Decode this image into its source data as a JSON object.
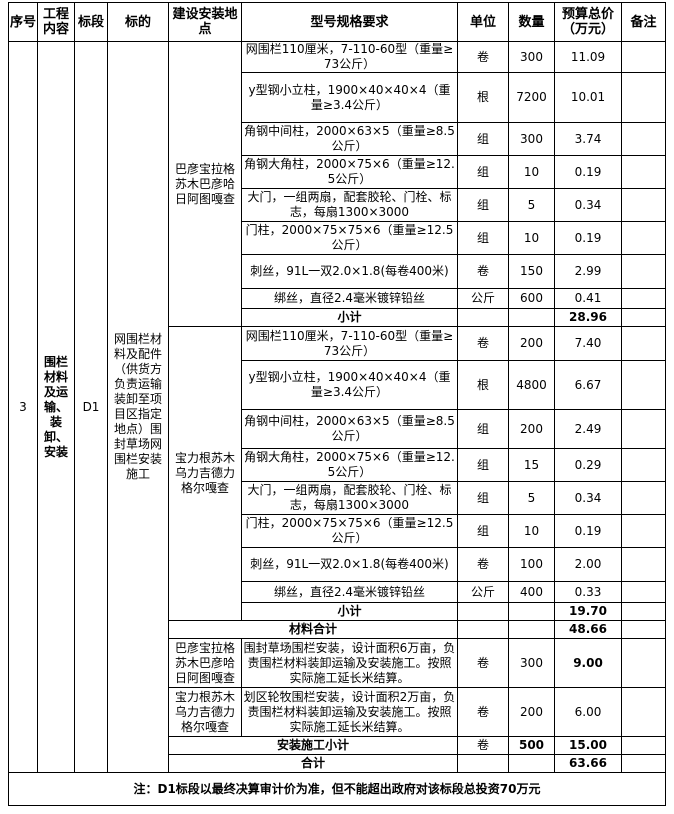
{
  "header": [
    "序号",
    "工程内容",
    "标段",
    "标的",
    "建设安装地点",
    "型号规格要求",
    "单位",
    "数量",
    "预算总价（万元）",
    "备注"
  ],
  "seq": "3",
  "project": "围栏材料及运输、装卸、安装",
  "section": "D1",
  "subject": "网围栏材料及配件（供货方负责运输装卸至项目区指定地点）围封草场网围栏安装施工",
  "groups": [
    {
      "location": "巴彦宝拉格苏木巴彦哈日阿图嘎查",
      "items": [
        {
          "spec": "网围栏110厘米，7-110-60型（重量≥73公斤）",
          "unit": "卷",
          "qty": "300",
          "price": "11.09"
        },
        {
          "spec": "y型钢小立柱，1900×40×40×4（重量≥3.4公斤）",
          "unit": "根",
          "qty": "7200",
          "price": "10.01"
        },
        {
          "spec": "角钢中间柱，2000×63×5（重量≥8.5公斤）",
          "unit": "组",
          "qty": "300",
          "price": "3.74"
        },
        {
          "spec": "角钢大角柱，2000×75×6（重量≥12.5公斤）",
          "unit": "组",
          "qty": "10",
          "price": "0.19"
        },
        {
          "spec": "大门，一组两扇，配套胶轮、门栓、标志，每扇1300×3000",
          "unit": "组",
          "qty": "5",
          "price": "0.34"
        },
        {
          "spec": "门柱，2000×75×75×6（重量≥12.5公斤）",
          "unit": "组",
          "qty": "10",
          "price": "0.19"
        },
        {
          "spec": "刺丝，91L一双2.0×1.8(每卷400米)",
          "unit": "卷",
          "qty": "150",
          "price": "2.99"
        },
        {
          "spec": "绑丝，直径2.4毫米镀锌铅丝",
          "unit": "公斤",
          "qty": "600",
          "price": "0.41"
        }
      ],
      "subtotal_label": "小计",
      "subtotal": "28.96"
    },
    {
      "location": "宝力根苏木乌力吉德力格尔嘎查",
      "items": [
        {
          "spec": "网围栏110厘米，7-110-60型（重量≥73公斤）",
          "unit": "卷",
          "qty": "200",
          "price": "7.40"
        },
        {
          "spec": "y型钢小立柱，1900×40×40×4（重量≥3.4公斤）",
          "unit": "根",
          "qty": "4800",
          "price": "6.67"
        },
        {
          "spec": "角钢中间柱，2000×63×5（重量≥8.5公斤）",
          "unit": "组",
          "qty": "200",
          "price": "2.49"
        },
        {
          "spec": "角钢大角柱，2000×75×6（重量≥12.5公斤）",
          "unit": "组",
          "qty": "15",
          "price": "0.29"
        },
        {
          "spec": "大门，一组两扇，配套胶轮、门栓、标志，每扇1300×3000",
          "unit": "组",
          "qty": "5",
          "price": "0.34"
        },
        {
          "spec": "门柱，2000×75×75×6（重量≥12.5公斤）",
          "unit": "组",
          "qty": "10",
          "price": "0.19"
        },
        {
          "spec": "刺丝，91L一双2.0×1.8(每卷400米)",
          "unit": "卷",
          "qty": "100",
          "price": "2.00"
        },
        {
          "spec": "绑丝，直径2.4毫米镀锌铅丝",
          "unit": "公斤",
          "qty": "400",
          "price": "0.33"
        }
      ],
      "subtotal_label": "小计",
      "subtotal": "19.70"
    }
  ],
  "material_total": {
    "label": "材料合计",
    "price": "48.66"
  },
  "install": [
    {
      "location": "巴彦宝拉格苏木巴彦哈日阿图嘎查",
      "spec": "围封草场围栏安装，设计面积6万亩，负责围栏材料装卸运输及安装施工。按照实际施工延长米结算。",
      "unit": "卷",
      "qty": "300",
      "price": "9.00",
      "bold_price": true
    },
    {
      "location": "宝力根苏木乌力吉德力格尔嘎查",
      "spec": "划区轮牧围栏安装，设计面积2万亩，负责围栏材料装卸运输及安装施工。按照实际施工延长米结算。",
      "unit": "卷",
      "qty": "200",
      "price": "6.00",
      "bold_price": false
    }
  ],
  "install_subtotal": {
    "label": "安装施工小计",
    "unit": "卷",
    "qty": "500",
    "price": "15.00"
  },
  "grand_total": {
    "label": "合计",
    "price": "63.66"
  },
  "note": "注：D1标段以最终决算审计价为准，但不能超出政府对该标段总投资70万元"
}
